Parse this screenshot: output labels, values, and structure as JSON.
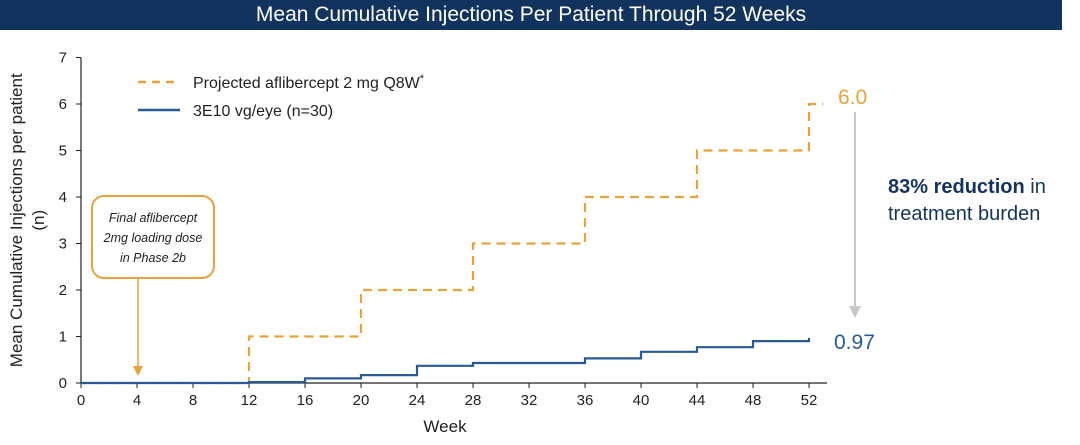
{
  "chart_data": {
    "type": "line",
    "title": "Mean Cumulative Injections Per Patient Through 52 Weeks",
    "xlabel": "Week",
    "ylabel": "Mean Cumulative Injections per patient (n)",
    "xlim": [
      0,
      52
    ],
    "ylim": [
      0,
      7
    ],
    "xticks": [
      0,
      4,
      8,
      12,
      16,
      20,
      24,
      28,
      32,
      36,
      40,
      44,
      48,
      52
    ],
    "yticks": [
      0,
      1,
      2,
      3,
      4,
      5,
      6,
      7
    ],
    "grid": false,
    "legend_position": "top-left",
    "series": [
      {
        "name": "Projected aflibercept 2 mg Q8W",
        "name_mark": "*",
        "style": "dashed-step",
        "color": "#e8a33d",
        "points": [
          [
            0,
            0
          ],
          [
            12,
            0
          ],
          [
            12,
            1
          ],
          [
            20,
            1
          ],
          [
            20,
            2
          ],
          [
            28,
            2
          ],
          [
            28,
            3
          ],
          [
            36,
            3
          ],
          [
            36,
            4
          ],
          [
            44,
            4
          ],
          [
            44,
            5
          ],
          [
            52,
            5
          ],
          [
            52,
            6
          ],
          [
            53,
            6
          ]
        ],
        "end_label": "6.0"
      },
      {
        "name": "3E10 vg/eye (n=30)",
        "style": "solid-step",
        "color": "#2a5a94",
        "points": [
          [
            0,
            0
          ],
          [
            12,
            0
          ],
          [
            12,
            0.02
          ],
          [
            16,
            0.02
          ],
          [
            16,
            0.1
          ],
          [
            20,
            0.1
          ],
          [
            20,
            0.17
          ],
          [
            24,
            0.17
          ],
          [
            24,
            0.37
          ],
          [
            28,
            0.37
          ],
          [
            28,
            0.43
          ],
          [
            36,
            0.43
          ],
          [
            36,
            0.53
          ],
          [
            40,
            0.53
          ],
          [
            40,
            0.67
          ],
          [
            44,
            0.67
          ],
          [
            44,
            0.77
          ],
          [
            48,
            0.77
          ],
          [
            48,
            0.9
          ],
          [
            52,
            0.9
          ],
          [
            52,
            0.97
          ]
        ],
        "end_label": "0.97"
      }
    ],
    "annotations": [
      {
        "text_lines": [
          "Final aflibercept",
          "2mg loading dose",
          "in Phase 2b"
        ],
        "x": 4
      }
    ],
    "callout": {
      "bold": "83% reduction",
      "rest": " in",
      "line2": "treatment burden"
    }
  }
}
